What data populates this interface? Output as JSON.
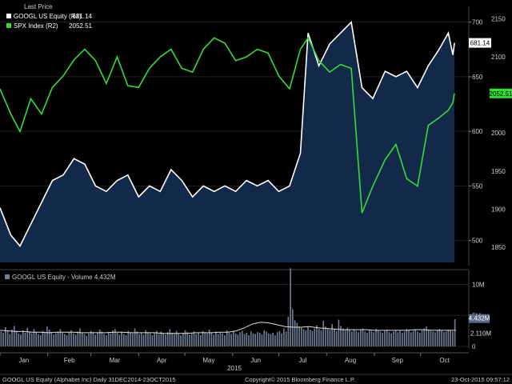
{
  "chart_data": [
    {
      "type": "line",
      "legend": {
        "header": "Last Price",
        "entries": [
          {
            "name": "GOOGL US Equity  (R1)",
            "last": "681.14",
            "color": "#ffffff"
          },
          {
            "name": "SPX Index  (R2)",
            "last": "2052.51",
            "color": "#33dd33"
          }
        ],
        "position": "top-left"
      },
      "x_months": [
        "Jan",
        "Feb",
        "Mar",
        "Apr",
        "May",
        "Jun",
        "Jul",
        "Aug",
        "Sep",
        "Oct"
      ],
      "x_year": "2015",
      "googl_axis": {
        "ticks": [
          "700",
          "650",
          "600",
          "550",
          "500"
        ],
        "ylim": [
          480,
          710
        ]
      },
      "spx_axis": {
        "ticks": [
          "2150",
          "2100",
          "2050",
          "2000",
          "1950",
          "1900",
          "1850"
        ],
        "ylim": [
          1830,
          2160
        ]
      },
      "series": [
        {
          "name": "GOOGL US Equity",
          "color": "#ffffff",
          "fill": "#12294a",
          "x": [
            "2015-01-01",
            "2015-01-08",
            "2015-01-14",
            "2015-01-21",
            "2015-01-28",
            "2015-02-04",
            "2015-02-11",
            "2015-02-18",
            "2015-02-25",
            "2015-03-04",
            "2015-03-11",
            "2015-03-18",
            "2015-03-25",
            "2015-04-01",
            "2015-04-08",
            "2015-04-15",
            "2015-04-22",
            "2015-04-29",
            "2015-05-06",
            "2015-05-13",
            "2015-05-20",
            "2015-05-27",
            "2015-06-03",
            "2015-06-10",
            "2015-06-17",
            "2015-06-24",
            "2015-07-01",
            "2015-07-08",
            "2015-07-15",
            "2015-07-20",
            "2015-07-27",
            "2015-08-03",
            "2015-08-10",
            "2015-08-17",
            "2015-08-24",
            "2015-08-31",
            "2015-09-08",
            "2015-09-15",
            "2015-09-22",
            "2015-09-29",
            "2015-10-06",
            "2015-10-13",
            "2015-10-19",
            "2015-10-22",
            "2015-10-23"
          ],
          "values": [
            530,
            505,
            495,
            515,
            535,
            555,
            560,
            575,
            570,
            550,
            545,
            555,
            560,
            540,
            550,
            545,
            565,
            555,
            540,
            550,
            545,
            550,
            545,
            555,
            550,
            555,
            545,
            550,
            580,
            690,
            660,
            680,
            690,
            700,
            640,
            630,
            655,
            650,
            655,
            640,
            660,
            675,
            690,
            670,
            681
          ]
        },
        {
          "name": "SPX Index",
          "color": "#33dd33",
          "x": [
            "2015-01-01",
            "2015-01-08",
            "2015-01-14",
            "2015-01-21",
            "2015-01-28",
            "2015-02-04",
            "2015-02-11",
            "2015-02-18",
            "2015-02-25",
            "2015-03-04",
            "2015-03-11",
            "2015-03-18",
            "2015-03-25",
            "2015-04-01",
            "2015-04-08",
            "2015-04-15",
            "2015-04-22",
            "2015-04-29",
            "2015-05-06",
            "2015-05-13",
            "2015-05-20",
            "2015-05-27",
            "2015-06-03",
            "2015-06-10",
            "2015-06-17",
            "2015-06-24",
            "2015-07-01",
            "2015-07-08",
            "2015-07-15",
            "2015-07-20",
            "2015-07-27",
            "2015-08-03",
            "2015-08-10",
            "2015-08-17",
            "2015-08-24",
            "2015-08-31",
            "2015-09-08",
            "2015-09-15",
            "2015-09-22",
            "2015-09-29",
            "2015-10-06",
            "2015-10-13",
            "2015-10-19",
            "2015-10-22",
            "2015-10-23"
          ],
          "values": [
            2058,
            2025,
            2002,
            2045,
            2025,
            2060,
            2075,
            2096,
            2110,
            2095,
            2065,
            2100,
            2062,
            2060,
            2085,
            2100,
            2110,
            2085,
            2080,
            2110,
            2125,
            2118,
            2095,
            2100,
            2110,
            2105,
            2075,
            2058,
            2110,
            2125,
            2095,
            2080,
            2090,
            2085,
            1895,
            1930,
            1965,
            1985,
            1940,
            1930,
            2010,
            2020,
            2030,
            2040,
            2052
          ]
        }
      ]
    },
    {
      "type": "bar",
      "title": "GOOGL US Equity - Volume 4.432M",
      "y_ticks": [
        "10M",
        "5M",
        "0"
      ],
      "ylim": [
        0,
        12
      ],
      "right_labels": [
        {
          "text": "4.432M",
          "value": 4.432,
          "style": "box"
        },
        {
          "text": "2.110M",
          "value": 2.11,
          "style": "plain"
        }
      ],
      "series": [
        {
          "name": "Volume",
          "color": "#6f7d95",
          "values_m": [
            2.4,
            2.2,
            3.1,
            2.6,
            2.0,
            2.7,
            3.3,
            2.5,
            2.1,
            1.9,
            2.6,
            2.2,
            3.0,
            2.4,
            2.1,
            2.8,
            2.3,
            2.0,
            1.8,
            2.5,
            2.2,
            3.2,
            2.7,
            2.3,
            1.9,
            2.1,
            2.4,
            2.8,
            2.2,
            2.0,
            1.8,
            2.3,
            2.6,
            2.1,
            1.9,
            2.4,
            2.9,
            2.2,
            2.0,
            1.7,
            2.1,
            2.5,
            2.3,
            1.9,
            2.2,
            2.7,
            2.4,
            2.0,
            1.8,
            2.3,
            2.1,
            2.6,
            2.8,
            2.2,
            1.9,
            2.4,
            2.0,
            1.8,
            2.5,
            2.3,
            2.1,
            2.9,
            2.4,
            2.0,
            2.2,
            1.9,
            2.6,
            2.3,
            2.1,
            1.8,
            2.2,
            2.5,
            2.0,
            2.4,
            2.1,
            1.9,
            2.3,
            2.8,
            2.2,
            2.0,
            2.5,
            2.1,
            1.8,
            2.2,
            2.6,
            2.3,
            1.9,
            2.1,
            2.4,
            2.0,
            2.2,
            1.8,
            2.5,
            2.3,
            2.1,
            2.7,
            2.2,
            1.9,
            2.4,
            2.0,
            2.3,
            2.1,
            1.8,
            2.6,
            2.2,
            2.0,
            2.4,
            2.1,
            1.9,
            2.3,
            2.5,
            2.0,
            2.2,
            1.8,
            2.4,
            2.1,
            2.0,
            2.3,
            2.2,
            1.9,
            2.6,
            2.4,
            2.1,
            2.0,
            2.2,
            1.8,
            2.3,
            2.5,
            2.1,
            2.9,
            2.4,
            4.8,
            12.6,
            6.0,
            4.2,
            3.8,
            3.2,
            3.0,
            2.8,
            2.6,
            3.1,
            2.7,
            2.5,
            2.9,
            3.4,
            2.8,
            2.6,
            4.1,
            3.2,
            2.9,
            2.7,
            3.6,
            2.8,
            2.5,
            4.3,
            3.3,
            2.9,
            2.6,
            3.0,
            2.7,
            2.4,
            2.8,
            2.5,
            2.3,
            2.6,
            2.9,
            2.4,
            2.2,
            2.7,
            2.5,
            2.3,
            2.8,
            2.6,
            2.4,
            2.2,
            2.5,
            2.7,
            2.3,
            2.1,
            2.4,
            2.6,
            2.3,
            2.5,
            2.2,
            2.4,
            2.8,
            2.6,
            2.3,
            2.5,
            2.7,
            2.4,
            2.2,
            2.6,
            2.9,
            3.2,
            2.7,
            2.5,
            2.4,
            2.3,
            2.6,
            2.8,
            2.5,
            2.3,
            2.4,
            2.7,
            2.6,
            2.4,
            4.4
          ]
        },
        {
          "name": "Volume moving average",
          "color": "#dddddd",
          "values_m": [
            2.6,
            2.5,
            2.4,
            2.4,
            2.3,
            2.3,
            2.2,
            2.3,
            2.3,
            2.3,
            2.2,
            2.2,
            2.2,
            2.2,
            2.3,
            2.3,
            2.2,
            2.2,
            2.2,
            2.2,
            2.1,
            2.1,
            2.1,
            2.1,
            2.2,
            2.2,
            2.2,
            2.3,
            2.3,
            2.5,
            3.0,
            3.6,
            3.9,
            3.8,
            3.5,
            3.2,
            3.1,
            3.1,
            3.2,
            3.0,
            2.9,
            2.8,
            2.7,
            2.7,
            2.7,
            2.7,
            2.6,
            2.6,
            2.6,
            2.6,
            2.6,
            2.7,
            2.7,
            2.6,
            2.6,
            2.6,
            2.6
          ]
        }
      ]
    }
  ],
  "footer": {
    "left": "GOOGL US Equity (Alphabet Inc)  Daily 31DEC2014-23OCT2015",
    "center": "Copyright© 2015 Bloomberg Finance L.P.",
    "right": "23-Oct-2015  09:57:12"
  }
}
